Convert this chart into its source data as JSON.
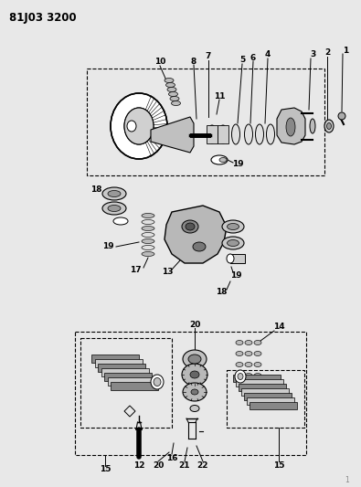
{
  "title": "81J03 3200",
  "bg_color": "#f0f0f0",
  "fg_color": "#000000",
  "fig_width": 3.95,
  "fig_height": 5.33,
  "dpi": 100
}
